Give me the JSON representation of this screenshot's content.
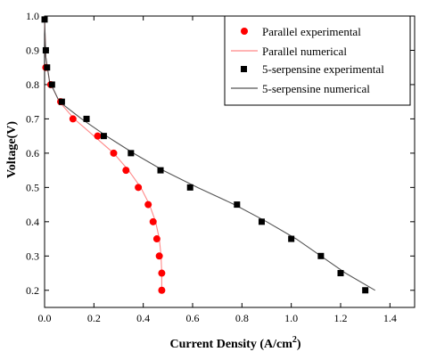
{
  "chart_data": {
    "type": "scatter",
    "xlabel": "Current Density (A/cm",
    "xlabel_sup": "2",
    "xlabel_close": ")",
    "ylabel": "Voltage(V)",
    "xlim": [
      0.0,
      1.5
    ],
    "ylim": [
      0.15,
      1.0
    ],
    "xticks": [
      "0.0",
      "0.2",
      "0.4",
      "0.6",
      "0.8",
      "1.0",
      "1.2",
      "1.4"
    ],
    "xtick_values": [
      0.0,
      0.2,
      0.4,
      0.6,
      0.8,
      1.0,
      1.2,
      1.4
    ],
    "yticks": [
      "0.2",
      "0.3",
      "0.4",
      "0.5",
      "0.6",
      "0.7",
      "0.8",
      "0.9",
      "1.0"
    ],
    "ytick_values": [
      0.2,
      0.3,
      0.4,
      0.5,
      0.6,
      0.7,
      0.8,
      0.9,
      1.0
    ],
    "grid": false,
    "legend_position": "top-right",
    "series": [
      {
        "name": "Parallel experimental",
        "kind": "scatter",
        "marker": "circle",
        "color": "#ff0000",
        "x": [
          0.005,
          0.025,
          0.065,
          0.115,
          0.215,
          0.28,
          0.33,
          0.38,
          0.42,
          0.44,
          0.455,
          0.465,
          0.475,
          0.475
        ],
        "y": [
          0.85,
          0.8,
          0.75,
          0.7,
          0.65,
          0.6,
          0.55,
          0.5,
          0.45,
          0.4,
          0.35,
          0.3,
          0.25,
          0.2
        ]
      },
      {
        "name": "Parallel numerical",
        "kind": "line",
        "color": "#ff8888",
        "x": [
          0.0,
          0.005,
          0.02,
          0.06,
          0.12,
          0.2,
          0.28,
          0.34,
          0.39,
          0.425,
          0.45,
          0.465,
          0.472,
          0.475,
          0.475
        ],
        "y": [
          0.99,
          0.88,
          0.81,
          0.75,
          0.7,
          0.65,
          0.6,
          0.55,
          0.5,
          0.45,
          0.4,
          0.35,
          0.3,
          0.25,
          0.2
        ]
      },
      {
        "name": "5-serpensine experimental",
        "kind": "scatter",
        "marker": "square",
        "color": "#000000",
        "x": [
          0.0,
          0.005,
          0.01,
          0.03,
          0.07,
          0.17,
          0.24,
          0.35,
          0.47,
          0.59,
          0.78,
          0.88,
          1.0,
          1.12,
          1.2,
          1.3
        ],
        "y": [
          0.99,
          0.9,
          0.85,
          0.8,
          0.75,
          0.7,
          0.65,
          0.6,
          0.55,
          0.5,
          0.45,
          0.4,
          0.35,
          0.3,
          0.25,
          0.2
        ]
      },
      {
        "name": "5-serpensine numerical",
        "kind": "line",
        "color": "#555555",
        "x": [
          0.0,
          0.005,
          0.02,
          0.06,
          0.15,
          0.25,
          0.36,
          0.48,
          0.62,
          0.77,
          0.9,
          1.02,
          1.12,
          1.22,
          1.34
        ],
        "y": [
          0.99,
          0.88,
          0.81,
          0.75,
          0.7,
          0.65,
          0.6,
          0.55,
          0.5,
          0.45,
          0.4,
          0.35,
          0.3,
          0.25,
          0.2
        ]
      }
    ]
  }
}
